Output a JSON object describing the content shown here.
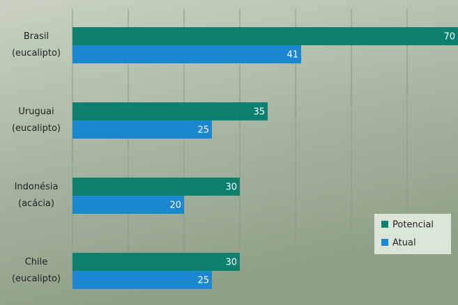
{
  "chart_data": {
    "type": "barh",
    "categories": [
      "Brasil (eucalipto)",
      "Uruguai (eucalipto)",
      "Indonésia (acácia)",
      "Chile (eucalipto)"
    ],
    "series": [
      {
        "name": "Potencial",
        "color": "#0f7f6f",
        "values": [
          70,
          35,
          30,
          30
        ]
      },
      {
        "name": "Atual",
        "color": "#1b86d2",
        "values": [
          41,
          25,
          20,
          25
        ]
      }
    ],
    "xlim": [
      0,
      70
    ],
    "xticks": [
      0,
      10,
      20,
      30,
      40,
      50,
      60,
      70
    ],
    "grid": true,
    "legend": "lower right"
  }
}
